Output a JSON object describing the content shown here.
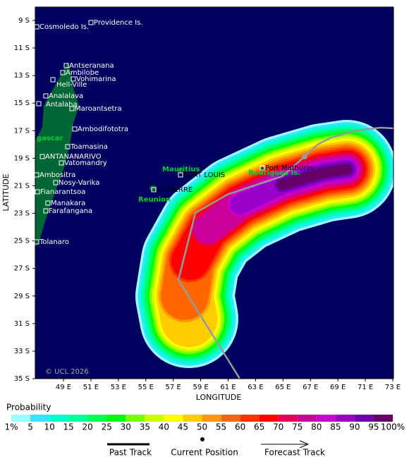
{
  "map": {
    "axis_x": "LONGITUDE",
    "axis_y": "LATITUDE",
    "copyright": "© UCL 2026",
    "lat_ticks": [
      "9 S",
      "11 S",
      "13 S",
      "15 S",
      "17 S",
      "19 S",
      "21 S",
      "23 S",
      "25 S",
      "27 S",
      "29 S",
      "31 S",
      "33 S",
      "35 S"
    ],
    "lon_ticks": [
      "49 E",
      "51 E",
      "53 E",
      "55 E",
      "57 E",
      "59 E",
      "61 E",
      "63 E",
      "65 E",
      "67 E",
      "69 E",
      "71 E",
      "73 E"
    ],
    "places": [
      "Cosmoledo Is.",
      "Providence Is.",
      "Antseranana",
      "Ambilobe",
      "Vohimarina",
      "Hell-Ville",
      "Analalava",
      "Antalaha",
      "Maroantsetra",
      "Ambodifototra",
      "Toamasina",
      "ANTANANARIVO",
      "Vatomandry",
      "Ambositra",
      "Nosy-Varika",
      "Fianarantsoa",
      "Manakara",
      "Farafangana",
      "Tolanaro",
      "PORT LOUIS",
      "Port Mathurin",
      "ST PIERRE"
    ],
    "regions": [
      "gascar",
      "Mauritius",
      "Rodrigues Is.",
      "Reunion"
    ]
  },
  "colorbar": {
    "title": "Probability",
    "labels": [
      "1%",
      "5",
      "10",
      "15",
      "20",
      "25",
      "30",
      "35",
      "40",
      "45",
      "50",
      "55",
      "60",
      "65",
      "70",
      "75",
      "80",
      "85",
      "90",
      "95",
      "100%"
    ],
    "colors": [
      "#99ffff",
      "#33e6ff",
      "#00ffcc",
      "#00ff99",
      "#00ff55",
      "#00ff00",
      "#77ff00",
      "#ccff00",
      "#ffff00",
      "#ffcc00",
      "#ff9900",
      "#ff6600",
      "#ff3300",
      "#ff0000",
      "#e0005a",
      "#cc0099",
      "#cc00cc",
      "#9900cc",
      "#6a00b0",
      "#660066"
    ]
  },
  "legend": [
    "Past Track",
    "Current Position",
    "Forecast Track"
  ]
}
